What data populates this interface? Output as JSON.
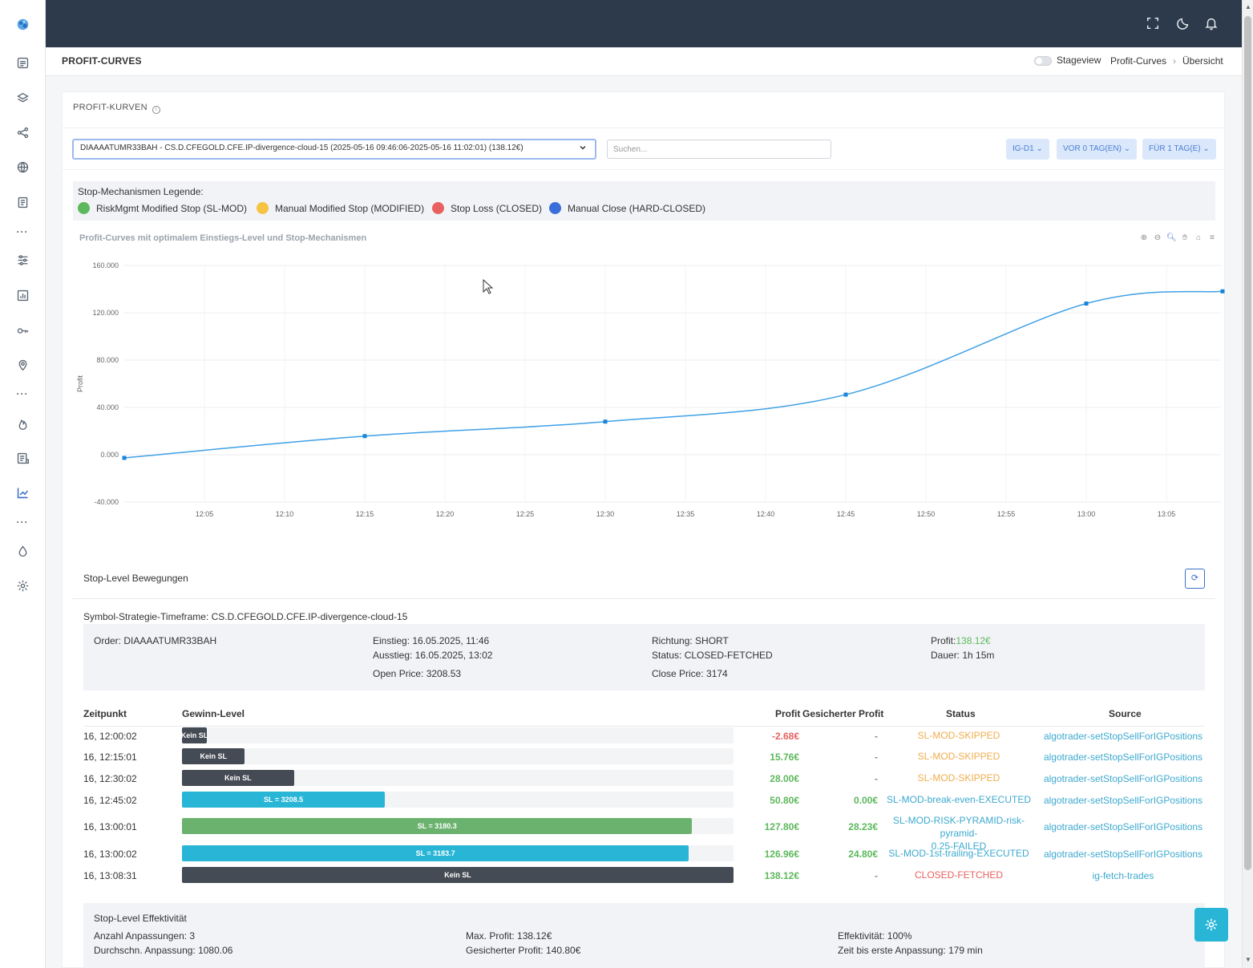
{
  "sidebar": {
    "icons": [
      "logo-icon",
      "inbox-icon",
      "layers-icon",
      "share-icon",
      "globe-icon",
      "document-icon",
      "more-icon",
      "sliders-icon",
      "report-chart-icon",
      "key-icon",
      "location-pin-icon",
      "more-icon",
      "flame-icon",
      "list-document-icon",
      "line-chart-icon",
      "more-icon",
      "droplet-icon",
      "gear-icon"
    ]
  },
  "topbar": {
    "icons": [
      "fullscreen-icon",
      "moon-icon",
      "bell-icon"
    ]
  },
  "page": {
    "title": "PROFIT-CURVES",
    "stageview_label": "Stageview",
    "breadcrumb": [
      "Profit-Curves",
      "Übersicht"
    ]
  },
  "card": {
    "title": "PROFIT-KURVEN",
    "order_select_value": "DIAAAATUMR33BAH - CS.D.CFEGOLD.CFE.IP-divergence-cloud-15 (2025-05-16 09:46:06-2025-05-16 11:02:01) (138.12€)",
    "search_placeholder": "Suchen...",
    "filters": [
      "IG-D1",
      "VOR 0 TAG(EN)",
      "FÜR 1 TAG(E)"
    ]
  },
  "legend": {
    "title": "Stop-Mechanismen Legende:",
    "items": [
      {
        "label": "RiskMgmt Modified Stop (SL-MOD)",
        "color": "#5cb85c"
      },
      {
        "label": "Manual Modified Stop (MODIFIED)",
        "color": "#f6c342"
      },
      {
        "label": "Stop Loss (CLOSED)",
        "color": "#e8605f"
      },
      {
        "label": "Manual Close (HARD-CLOSED)",
        "color": "#3a6fd9"
      }
    ]
  },
  "chart_data": {
    "type": "line",
    "title": "Profit-Curves mit optimalem Einstiegs-Level und Stop-Mechanismen",
    "xlabel": "",
    "ylabel": "Profit",
    "x_ticks": [
      "12:05",
      "12:10",
      "12:15",
      "12:20",
      "12:25",
      "12:30",
      "12:35",
      "12:40",
      "12:45",
      "12:50",
      "12:55",
      "13:00",
      "13:05"
    ],
    "y_ticks": [
      "160.000",
      "120.000",
      "80.000",
      "40.000",
      "0.000",
      "-40.000"
    ],
    "ylim": [
      -40,
      160
    ],
    "xlim_minutes": [
      0,
      69
    ],
    "series": [
      {
        "name": "Profit",
        "color": "#3ea0e6",
        "x_minutes": [
          0,
          15,
          30,
          45,
          60,
          68.5
        ],
        "values": [
          -2.68,
          15.76,
          28.0,
          50.8,
          127.8,
          138.12
        ]
      }
    ]
  },
  "stop_section": {
    "title": "Stop-Level Bewegungen",
    "refresh_icon": "refresh-icon",
    "symbol_line": "Symbol-Strategie-Timeframe: CS.D.CFEGOLD.CFE.IP-divergence-cloud-15",
    "order": {
      "order_label": "Order: DIAAAATUMR33BAH",
      "einstieg": "Einstieg: 16.05.2025, 11:46",
      "ausstieg": "Ausstieg: 16.05.2025, 13:02",
      "open_price": "Open Price: 3208.53",
      "richtung": "Richtung: SHORT",
      "status": "Status: CLOSED-FETCHED",
      "close_price": "Close Price: 3174",
      "profit_label": "Profit:",
      "profit_value": "138.12€",
      "dauer": "Dauer: 1h 15m"
    },
    "columns": [
      "Zeitpunkt",
      "Gewinn-Level",
      "Profit",
      "Gesicherter Profit",
      "Status",
      "Source"
    ],
    "rows": [
      {
        "time": "16, 12:00:02",
        "bar_label": "Kein SL",
        "bar_fraction": 0.045,
        "bar_color": "#454b54",
        "profit": "-2.68€",
        "profit_color": "#e8605f",
        "secured": "-",
        "secured_color": "#888888",
        "status": "SL-MOD-SKIPPED",
        "status_color": "#f0ad4e",
        "source": "algotrader-setStopSellForIGPositions"
      },
      {
        "time": "16, 12:15:01",
        "bar_label": "Kein SL",
        "bar_fraction": 0.114,
        "bar_color": "#454b54",
        "profit": "15.76€",
        "profit_color": "#5cb85c",
        "secured": "-",
        "secured_color": "#888888",
        "status": "SL-MOD-SKIPPED",
        "status_color": "#f0ad4e",
        "source": "algotrader-setStopSellForIGPositions"
      },
      {
        "time": "16, 12:30:02",
        "bar_label": "Kein SL",
        "bar_fraction": 0.203,
        "bar_color": "#454b54",
        "profit": "28.00€",
        "profit_color": "#5cb85c",
        "secured": "-",
        "secured_color": "#888888",
        "status": "SL-MOD-SKIPPED",
        "status_color": "#f0ad4e",
        "source": "algotrader-setStopSellForIGPositions"
      },
      {
        "time": "16, 12:45:02",
        "bar_label": "SL = 3208.5",
        "bar_fraction": 0.368,
        "bar_color": "#29b6d6",
        "profit": "50.80€",
        "profit_color": "#5cb85c",
        "secured": "0.00€",
        "secured_color": "#5cb85c",
        "status": "SL-MOD-break-even-EXECUTED",
        "status_color": "#3da9cf",
        "source": "algotrader-setStopSellForIGPositions"
      },
      {
        "time": "16, 13:00:01",
        "bar_label": "SL = 3180.3",
        "bar_fraction": 0.925,
        "bar_color": "#6ab26e",
        "profit": "127.80€",
        "profit_color": "#5cb85c",
        "secured": "28.23€",
        "secured_color": "#5cb85c",
        "status": "SL-MOD-RISK-PYRAMID-risk-pyramid-0.25-FAILED",
        "status_line1": "SL-MOD-RISK-PYRAMID-risk-pyramid-",
        "status_line2": "0.25-FAILED",
        "status_color": "#3da9cf",
        "source": "algotrader-setStopSellForIGPositions"
      },
      {
        "time": "16, 13:00:02",
        "bar_label": "SL = 3183.7",
        "bar_fraction": 0.919,
        "bar_color": "#29b6d6",
        "profit": "126.96€",
        "profit_color": "#5cb85c",
        "secured": "24.80€",
        "secured_color": "#5cb85c",
        "status": "SL-MOD-1st-trailing-EXECUTED",
        "status_color": "#3da9cf",
        "source": "algotrader-setStopSellForIGPositions"
      },
      {
        "time": "16, 13:08:31",
        "bar_label": "Kein SL",
        "bar_fraction": 1.0,
        "bar_color": "#454b54",
        "profit": "138.12€",
        "profit_color": "#5cb85c",
        "secured": "-",
        "secured_color": "#888888",
        "status": "CLOSED-FETCHED",
        "status_color": "#e8605f",
        "source": "ig-fetch-trades"
      }
    ],
    "effectiveness": {
      "title": "Stop-Level Effektivität",
      "anzahl": "Anzahl Anpassungen: 3",
      "durchschn": "Durchschn. Anpassung: 1080.06",
      "max_profit": "Max. Profit: 138.12€",
      "gesichert": "Gesicherter Profit: 140.80€",
      "effektivitaet": "Effektivität: 100%",
      "zeit": "Zeit bis erste Anpassung: 179 min"
    }
  },
  "fab": {
    "icon": "gear-icon"
  }
}
